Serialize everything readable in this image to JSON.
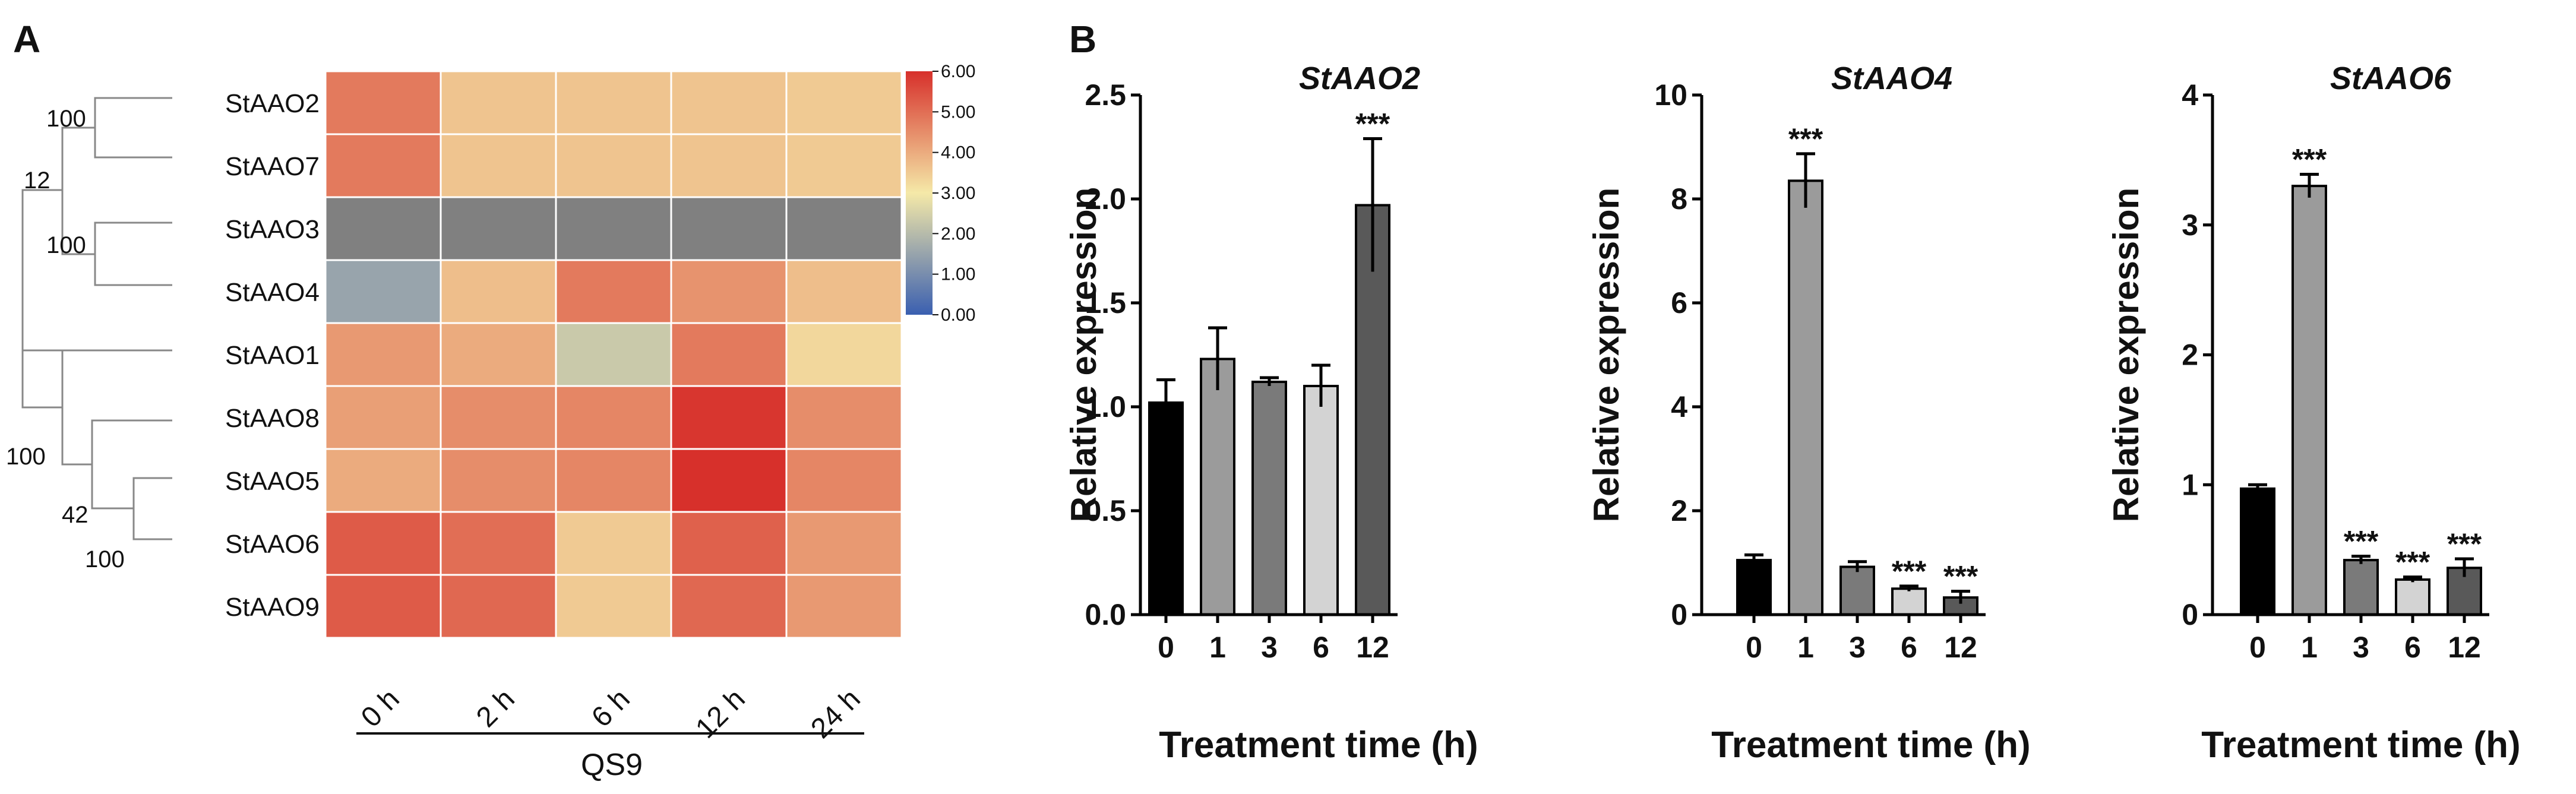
{
  "panel_a": {
    "letter": "A",
    "genes": [
      "StAAO2",
      "StAAO7",
      "StAAO3",
      "StAAO4",
      "StAAO1",
      "StAAO8",
      "StAAO5",
      "StAAO6",
      "StAAO9"
    ],
    "time_points": [
      "0 h",
      "2 h",
      "6 h",
      "12 h",
      "24 h"
    ],
    "group_label": "QS9",
    "bootstrap": [
      "100",
      "12",
      "100",
      "100",
      "42",
      "100"
    ],
    "colorbar_ticks": [
      "6.00",
      "5.00",
      "4.00",
      "3.00",
      "2.00",
      "1.00",
      "0.00"
    ],
    "colors": {
      "low": "#3a5fb0",
      "mid": "#f5e9a8",
      "high": "#d7302b",
      "missing": "#808080",
      "grid": "#ffffff"
    }
  },
  "panel_b": {
    "letter": "B",
    "bar_colors": [
      "#000000",
      "#9b9b9b",
      "#7a7a7a",
      "#d3d3d3",
      "#595959"
    ],
    "significance_mark": "***"
  },
  "chart_data": [
    {
      "type": "heatmap",
      "title": "",
      "rows": [
        "StAAO2",
        "StAAO7",
        "StAAO3",
        "StAAO4",
        "StAAO1",
        "StAAO8",
        "StAAO5",
        "StAAO6",
        "StAAO9"
      ],
      "columns": [
        "0 h",
        "2 h",
        "6 h",
        "12 h",
        "24 h"
      ],
      "values": [
        [
          4.8,
          3.6,
          3.6,
          3.6,
          3.5
        ],
        [
          4.8,
          3.6,
          3.6,
          3.6,
          3.5
        ],
        [
          null,
          null,
          null,
          null,
          null
        ],
        [
          1.5,
          3.7,
          4.8,
          4.4,
          3.7
        ],
        [
          4.3,
          4.0,
          2.3,
          4.8,
          3.3
        ],
        [
          4.2,
          4.5,
          4.6,
          5.9,
          4.5
        ],
        [
          4.0,
          4.5,
          4.6,
          6.0,
          4.6
        ],
        [
          5.3,
          5.0,
          3.5,
          5.2,
          4.3
        ],
        [
          5.3,
          5.1,
          3.5,
          5.1,
          4.3
        ]
      ],
      "zlim": [
        0,
        6
      ],
      "xlabel": "QS9"
    },
    {
      "type": "bar",
      "title": "StAAO2",
      "categories": [
        "0",
        "1",
        "3",
        "6",
        "12"
      ],
      "values": [
        1.02,
        1.23,
        1.12,
        1.1,
        1.97
      ],
      "errors": [
        0.11,
        0.15,
        0.02,
        0.1,
        0.32
      ],
      "significance": [
        "",
        "",
        "",
        "",
        "***"
      ],
      "xlabel": "Treatment time (h)",
      "ylabel": "Relative expression",
      "ylim": [
        0,
        2.5
      ],
      "yticks": [
        "0.0",
        "0.5",
        "1.0",
        "1.5",
        "2.0",
        "2.5"
      ]
    },
    {
      "type": "bar",
      "title": "StAAO4",
      "categories": [
        "0",
        "1",
        "3",
        "6",
        "12"
      ],
      "values": [
        1.05,
        8.35,
        0.92,
        0.5,
        0.33
      ],
      "errors": [
        0.1,
        0.52,
        0.1,
        0.05,
        0.12
      ],
      "significance": [
        "",
        "***",
        "",
        "***",
        "***"
      ],
      "xlabel": "Treatment time (h)",
      "ylabel": "Relative expression",
      "ylim": [
        0,
        10
      ],
      "yticks": [
        "0",
        "2",
        "4",
        "6",
        "8",
        "10"
      ]
    },
    {
      "type": "bar",
      "title": "StAAO6",
      "categories": [
        "0",
        "1",
        "3",
        "6",
        "12"
      ],
      "values": [
        0.97,
        3.3,
        0.42,
        0.27,
        0.36
      ],
      "errors": [
        0.03,
        0.09,
        0.03,
        0.02,
        0.07
      ],
      "significance": [
        "",
        "***",
        "***",
        "***",
        "***"
      ],
      "xlabel": "Treatment time (h)",
      "ylabel": "Relative expression",
      "ylim": [
        0,
        4
      ],
      "yticks": [
        "0",
        "1",
        "2",
        "3",
        "4"
      ]
    }
  ]
}
